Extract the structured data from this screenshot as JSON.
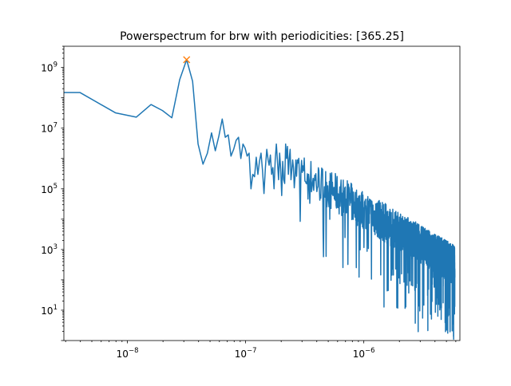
{
  "chart_data": {
    "type": "line",
    "title": "Powerspectrum for brw with periodicities: [365.25]",
    "xlabel": "",
    "ylabel": "",
    "xscale": "log",
    "yscale": "log",
    "xlim": [
      2.9e-09,
      6.5e-06
    ],
    "ylim": [
      1.0,
      5000000000.0
    ],
    "grid": false,
    "legend": "none",
    "x_ticks": [
      {
        "value": 1e-08,
        "base": "10",
        "exp": "−8"
      },
      {
        "value": 1e-07,
        "base": "10",
        "exp": "−7"
      },
      {
        "value": 1e-06,
        "base": "10",
        "exp": "−6"
      }
    ],
    "y_ticks": [
      {
        "value": 10,
        "base": "10",
        "exp": "1"
      },
      {
        "value": 1000,
        "base": "10",
        "exp": "3"
      },
      {
        "value": 100000,
        "base": "10",
        "exp": "5"
      },
      {
        "value": 10000000,
        "base": "10",
        "exp": "7"
      },
      {
        "value": 1000000000,
        "base": "10",
        "exp": "9"
      }
    ],
    "line_color": "#1f77b4",
    "peak_color": "#ff7f0e",
    "series_x": [
      2.9e-09,
      3.17e-09,
      3.96e-09,
      7.92e-09,
      1.188e-08,
      1.584e-08,
      1.98e-08,
      2.376e-08,
      2.77e-08,
      3.17e-08,
      3.56e-08,
      3.96e-08,
      4.36e-08,
      4.75e-08,
      5.15e-08,
      5.54e-08,
      5.94e-08,
      6.34e-08,
      6.73e-08,
      7.13e-08,
      7.52e-08,
      7.92e-08,
      8.32e-08,
      8.71e-08,
      9.11e-08,
      9.5e-08,
      9.9e-08,
      1.03e-07,
      1.07e-07,
      1.11e-07,
      1.15e-07,
      1.19e-07,
      1.23e-07,
      1.27e-07,
      1.31e-07,
      1.35e-07,
      1.39e-07,
      1.43e-07,
      1.47e-07,
      1.51e-07,
      1.55e-07,
      1.58e-07,
      1.62e-07,
      1.66e-07,
      1.7e-07,
      1.74e-07,
      1.78e-07,
      1.82e-07,
      1.86e-07,
      1.9e-07,
      1.94e-07,
      1.98e-07,
      2.02e-07,
      2.06e-07,
      2.1e-07,
      2.14e-07,
      2.18e-07,
      2.22e-07,
      2.26e-07,
      2.3e-07,
      2.34e-07,
      2.38e-07,
      2.42e-07,
      2.46e-07,
      2.5e-07,
      2.54e-07
    ],
    "series_y": [
      150000000.0,
      150000000.0,
      150000000.0,
      32000000.0,
      23000000.0,
      60000000.0,
      38000000.0,
      22000000.0,
      400000000.0,
      1800000000.0,
      350000000.0,
      3000000.0,
      650000.0,
      1500000.0,
      7000000.0,
      1800000.0,
      5500000.0,
      20000000.0,
      5000000.0,
      6000000.0,
      1200000.0,
      2000000.0,
      4000000.0,
      5000000.0,
      1000000.0,
      3000000.0,
      2200000.0,
      1200000.0,
      1500000.0,
      100000.0,
      300000.0,
      250000.0,
      1100000.0,
      300000.0,
      800000.0,
      1500000.0,
      400000.0,
      70000.0,
      500000.0,
      2000000.0,
      900000.0,
      600000.0,
      1300000.0,
      300000.0,
      500000.0,
      100000.0,
      900000.0,
      3000000.0,
      800000.0,
      200000.0,
      1500000.0,
      450000.0,
      60000.0,
      800000.0,
      200000.0,
      150000.0,
      3000000.0,
      1000000.0,
      2500000.0,
      300000.0,
      1000000.0,
      2000000.0,
      200000.0,
      400000.0,
      900000.0,
      500000.0
    ],
    "tail_trend": {
      "x_start": 2.54e-07,
      "x_end": 5.9e-06,
      "y_start": 500000.0,
      "y_end": 300.0
    },
    "peak": {
      "x": 3.17e-08,
      "y": 1800000000.0,
      "marker": "x"
    }
  }
}
